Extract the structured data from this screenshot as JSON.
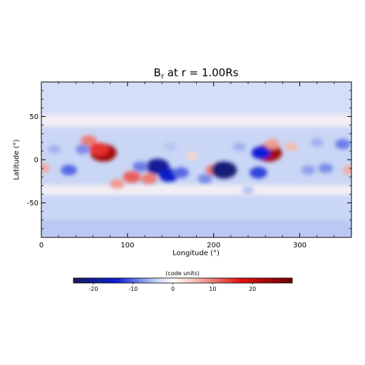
{
  "chart_data": {
    "type": "heatmap",
    "title": {
      "main": "B",
      "sub": "r",
      "rest": " at r = 1.00Rs"
    },
    "xlabel": "Longitude (°)",
    "ylabel": "Latitude (°)",
    "xlim": [
      0,
      360
    ],
    "ylim": [
      -90,
      90
    ],
    "xticks": [
      "0",
      "100",
      "200",
      "300"
    ],
    "xtick_values": [
      0,
      100,
      200,
      300
    ],
    "yticks": [
      "-50",
      "0",
      "50"
    ],
    "ytick_values": [
      -50,
      0,
      50
    ],
    "colorbar": {
      "label": "(code units)",
      "range": [
        -25,
        30
      ],
      "ticks": [
        "-20",
        "-10",
        "0",
        "10",
        "20"
      ],
      "tick_values": [
        -20,
        -10,
        0,
        10,
        20
      ],
      "colormap": [
        "#1a1a5e",
        "#0b1fd6",
        "#c9d6f5",
        "#ffffff",
        "#f5c9bd",
        "#e31212",
        "#6b0000"
      ]
    },
    "features": [
      {
        "lon": 72,
        "lat": 8,
        "value": 24
      },
      {
        "lon": 55,
        "lat": 22,
        "value": 10
      },
      {
        "lon": 67,
        "lat": 12,
        "value": 15
      },
      {
        "lon": 105,
        "lat": -20,
        "value": 12
      },
      {
        "lon": 125,
        "lat": -22,
        "value": 10
      },
      {
        "lon": 88,
        "lat": -28,
        "value": 8
      },
      {
        "lon": 2,
        "lat": -10,
        "value": 7
      },
      {
        "lon": 200,
        "lat": -12,
        "value": 10
      },
      {
        "lon": 264,
        "lat": 8,
        "value": 24
      },
      {
        "lon": 268,
        "lat": 18,
        "value": 8
      },
      {
        "lon": 290,
        "lat": 15,
        "value": 6
      },
      {
        "lon": 358,
        "lat": -12,
        "value": 7
      },
      {
        "lon": 175,
        "lat": 5,
        "value": 4
      },
      {
        "lon": 135,
        "lat": -8,
        "value": -20
      },
      {
        "lon": 148,
        "lat": -18,
        "value": -15
      },
      {
        "lon": 162,
        "lat": -15,
        "value": -10
      },
      {
        "lon": 212,
        "lat": -12,
        "value": -23
      },
      {
        "lon": 255,
        "lat": 8,
        "value": -14
      },
      {
        "lon": 252,
        "lat": -15,
        "value": -12
      },
      {
        "lon": 32,
        "lat": -12,
        "value": -10
      },
      {
        "lon": 48,
        "lat": 12,
        "value": -8
      },
      {
        "lon": 115,
        "lat": -8,
        "value": -9
      },
      {
        "lon": 190,
        "lat": -22,
        "value": -8
      },
      {
        "lon": 310,
        "lat": -12,
        "value": -7
      },
      {
        "lon": 330,
        "lat": -10,
        "value": -8
      },
      {
        "lon": 350,
        "lat": 18,
        "value": -9
      },
      {
        "lon": 230,
        "lat": 15,
        "value": -6
      },
      {
        "lon": 320,
        "lat": 20,
        "value": -6
      },
      {
        "lon": 150,
        "lat": 15,
        "value": -5
      },
      {
        "lon": 15,
        "lat": 12,
        "value": -6
      },
      {
        "lon": 180,
        "lat": 30,
        "value": -4
      },
      {
        "lon": 100,
        "lat": 30,
        "value": -4
      },
      {
        "lon": 240,
        "lat": -35,
        "value": -5
      }
    ]
  }
}
